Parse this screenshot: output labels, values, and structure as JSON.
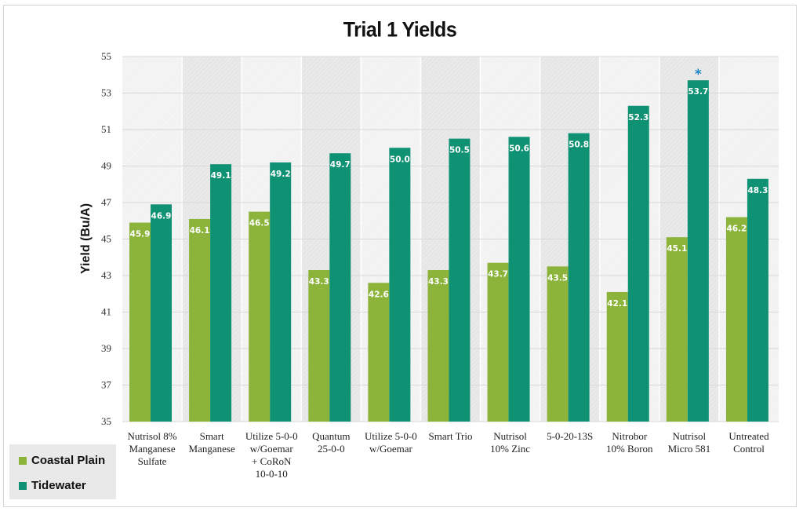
{
  "chart_data": {
    "type": "bar",
    "title": "Trial 1 Yields",
    "ylabel": "Yield (Bu/A)",
    "xlabel": "",
    "ylim": [
      35,
      55
    ],
    "yticks": [
      35,
      37,
      39,
      41,
      43,
      45,
      47,
      49,
      51,
      53,
      55
    ],
    "grid": true,
    "legend_position": "bottom-left",
    "categories": [
      [
        "Nutrisol 8%",
        "Manganese",
        "Sulfate"
      ],
      [
        "Smart",
        "Manganese"
      ],
      [
        "Utilize 5-0-0",
        "w/Goemar",
        "+ CoRoN",
        "10-0-10"
      ],
      [
        "Quantum",
        "25-0-0"
      ],
      [
        "Utilize 5-0-0",
        "w/Goemar"
      ],
      [
        "Smart Trio"
      ],
      [
        "Nutrisol",
        "10% Zinc"
      ],
      [
        "5-0-20-13S"
      ],
      [
        "Nitrobor",
        "10% Boron"
      ],
      [
        "Nutrisol",
        "Micro 581"
      ],
      [
        "Untreated",
        "Control"
      ]
    ],
    "series": [
      {
        "name": "Coastal Plain",
        "color": "#8cb43a",
        "values": [
          45.9,
          46.1,
          46.5,
          43.3,
          42.6,
          43.3,
          43.7,
          43.5,
          42.1,
          45.1,
          46.2
        ],
        "labels": [
          "45.9",
          "46.1",
          "46.5",
          "43.3",
          "42.6",
          "43.3",
          "43.7",
          "43.5",
          "42.1",
          "45.1",
          "46.2"
        ]
      },
      {
        "name": "Tidewater",
        "color": "#0f9173",
        "values": [
          46.9,
          49.1,
          49.2,
          49.7,
          50.0,
          50.5,
          50.6,
          50.8,
          52.3,
          53.7,
          48.3
        ],
        "labels": [
          "46.9",
          "49.1",
          "49.2",
          "49.7",
          "50.0",
          "50.5",
          "50.6",
          "50.8",
          "52.3",
          "53.7",
          "48.3"
        ]
      }
    ],
    "annotations": [
      {
        "text": "*",
        "category_index": 9,
        "series": "Tidewater",
        "color": "#1a86c0"
      }
    ],
    "colors": {
      "plot_bg_even": "#f2f2f2",
      "plot_bg_odd": "#e6e6e6",
      "gridline": "#d8d8d8"
    }
  }
}
